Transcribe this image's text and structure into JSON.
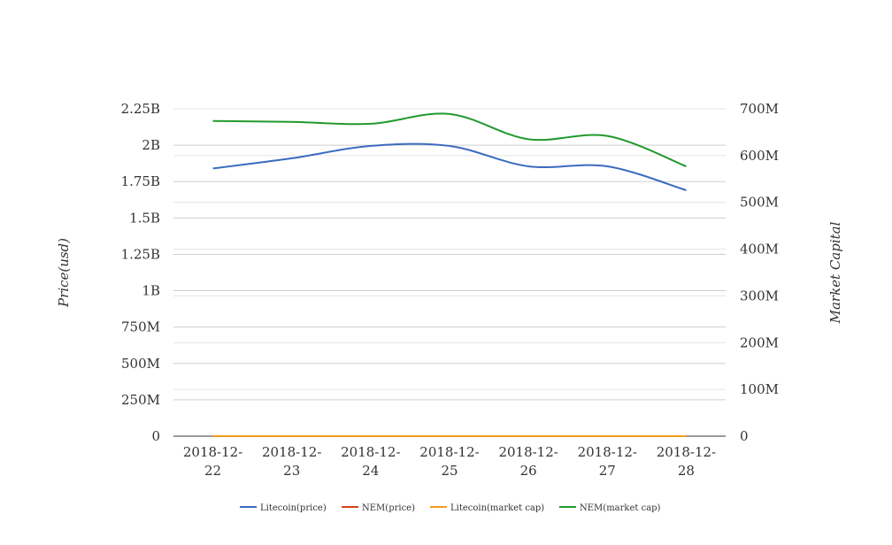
{
  "chart_data": {
    "type": "line",
    "categories": [
      "2018-12-22",
      "2018-12-23",
      "2018-12-24",
      "2018-12-25",
      "2018-12-26",
      "2018-12-27",
      "2018-12-28"
    ],
    "x_tick_labels": [
      [
        "2018-12-",
        "22"
      ],
      [
        "2018-12-",
        "23"
      ],
      [
        "2018-12-",
        "24"
      ],
      [
        "2018-12-",
        "25"
      ],
      [
        "2018-12-",
        "26"
      ],
      [
        "2018-12-",
        "27"
      ],
      [
        "2018-12-",
        "28"
      ]
    ],
    "y_left": {
      "label": "Price(usd)",
      "min": 0,
      "max": 2250000000,
      "ticks": [
        0,
        250000000,
        500000000,
        750000000,
        1000000000,
        1250000000,
        1500000000,
        1750000000,
        2000000000,
        2250000000
      ],
      "tick_labels": [
        "0",
        "250M",
        "500M",
        "750M",
        "1B",
        "1.25B",
        "1.5B",
        "1.75B",
        "2B",
        "2.25B"
      ]
    },
    "y_right": {
      "label": "Market Capital",
      "min": 0,
      "max": 700000000,
      "ticks": [
        0,
        100000000,
        200000000,
        300000000,
        400000000,
        500000000,
        600000000,
        700000000
      ],
      "tick_labels": [
        "0",
        "100M",
        "200M",
        "300M",
        "400M",
        "500M",
        "600M",
        "700M"
      ]
    },
    "series": [
      {
        "name": "Litecoin(price)",
        "axis": "left",
        "color": "#3b6bbf",
        "values": [
          1840000000,
          1910000000,
          1995000000,
          1995000000,
          1855000000,
          1855000000,
          1690000000
        ]
      },
      {
        "name": "NEM(price)",
        "axis": "left",
        "color": "#d2461e",
        "values": [
          0,
          0,
          0,
          0,
          0,
          0,
          0
        ]
      },
      {
        "name": "Litecoin(market cap)",
        "axis": "right",
        "color": "#f39c1a",
        "values": [
          0,
          0,
          0,
          0,
          0,
          0,
          0
        ]
      },
      {
        "name": "NEM(market cap)",
        "axis": "right",
        "color": "#22992e",
        "values": [
          674000000,
          672000000,
          668000000,
          689000000,
          635000000,
          642000000,
          577000000
        ]
      }
    ],
    "grid": true,
    "legend": "bottom"
  }
}
